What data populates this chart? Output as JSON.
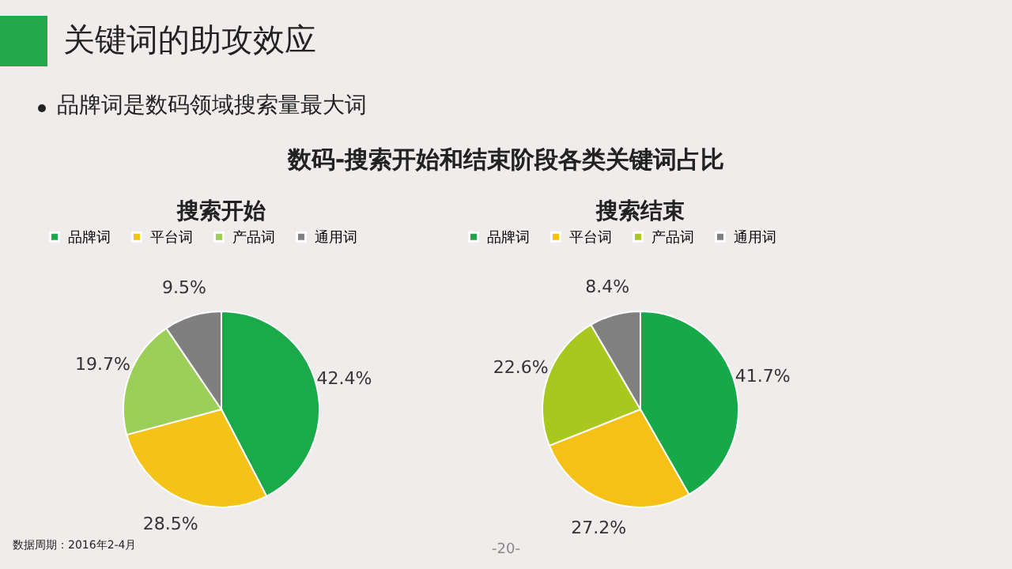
{
  "chart_data": [
    {
      "type": "pie",
      "title": "搜索开始",
      "categories": [
        "品牌词",
        "平台词",
        "产品词",
        "通用词"
      ],
      "values": [
        42.4,
        28.5,
        19.7,
        9.5
      ],
      "value_labels": [
        "42.4%",
        "28.5%",
        "19.7%",
        "9.5%"
      ],
      "colors": [
        "#1aaa4a",
        "#f5c218",
        "#9bcf5a",
        "#7f7f7f"
      ],
      "legend": "top",
      "annotations": [
        "关键词的助攻效应",
        "品牌词是数码领域搜索量最大词",
        "数码-搜索开始和结束阶段各类关键词占比",
        "数据周期：2016年2-4月",
        "-20-"
      ]
    },
    {
      "type": "pie",
      "title": "搜索结束",
      "categories": [
        "品牌词",
        "平台词",
        "产品词",
        "通用词"
      ],
      "values": [
        41.7,
        27.2,
        22.6,
        8.4
      ],
      "value_labels": [
        "41.7%",
        "27.2%",
        "22.6%",
        "8.4%"
      ],
      "colors": [
        "#17a84a",
        "#f6c015",
        "#a8c820",
        "#808080"
      ],
      "legend": "top"
    }
  ]
}
